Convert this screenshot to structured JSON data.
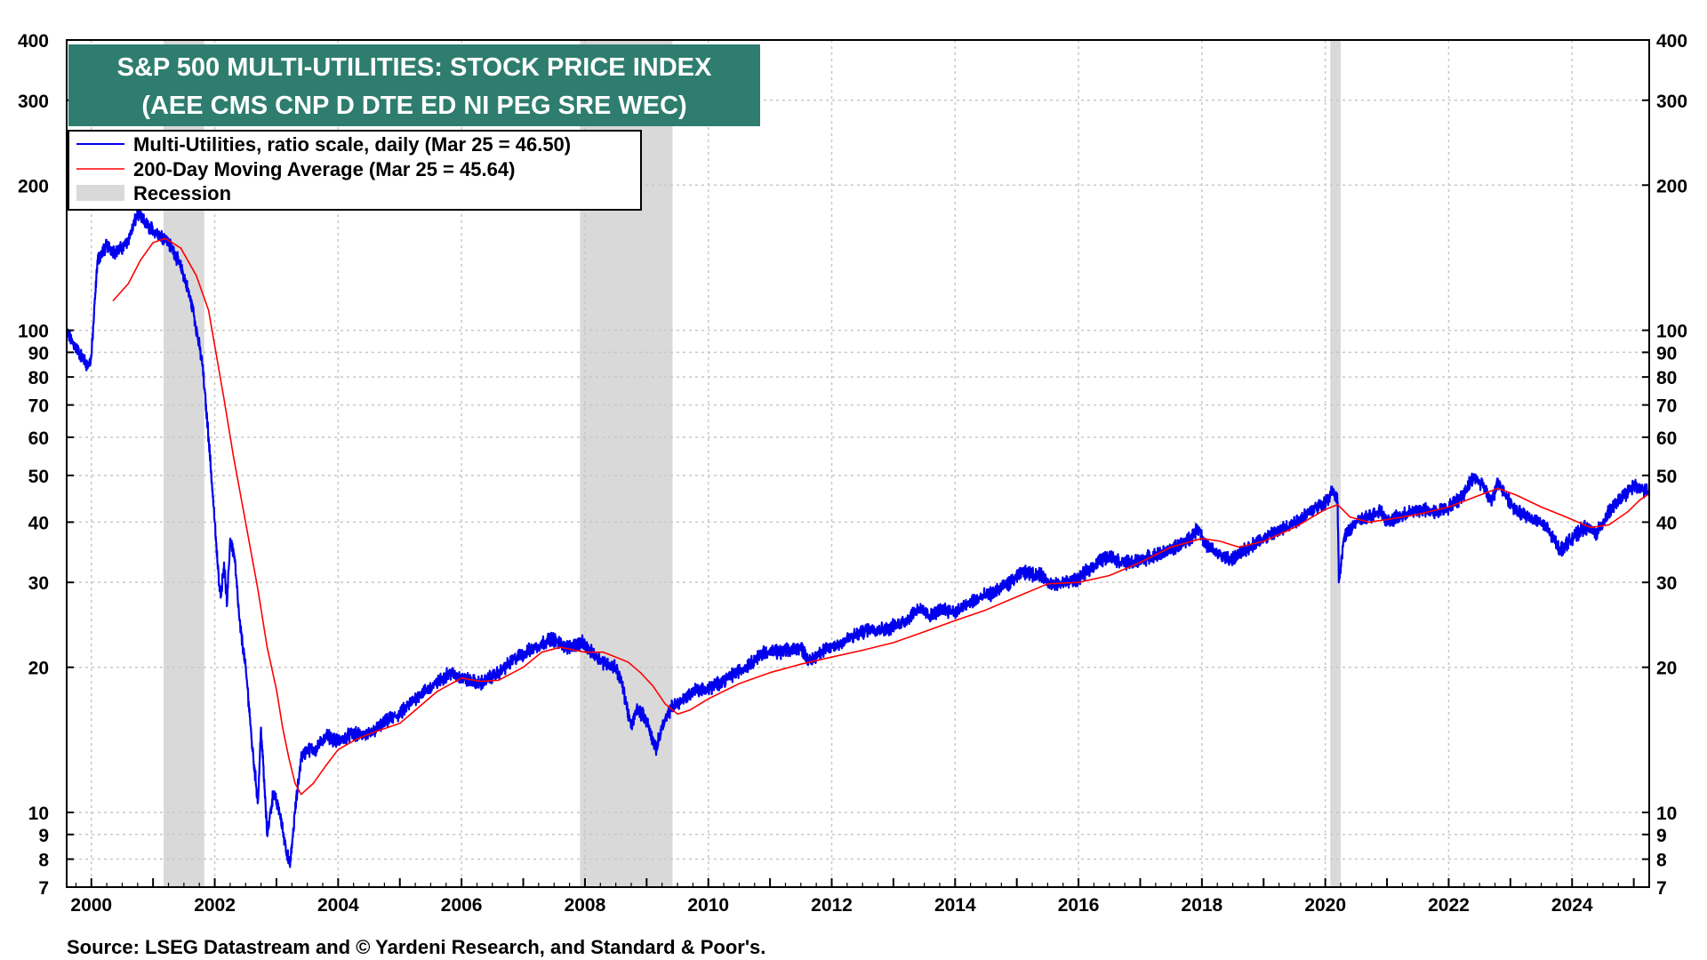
{
  "chart_data": {
    "type": "line",
    "title": "S&P 500 MULTI-UTILITIES: STOCK PRICE INDEX",
    "subtitle": "(AEE CMS CNP D DTE ED NI PEG SRE WEC)",
    "y_scale": "log",
    "ylim": [
      7,
      400
    ],
    "xlim": [
      1999.6,
      2025.25
    ],
    "grid": true,
    "legend_position": "top-left",
    "y_ticks": [
      7,
      8,
      9,
      10,
      20,
      30,
      40,
      50,
      60,
      70,
      80,
      90,
      100,
      200,
      300,
      400
    ],
    "y_tick_labels": [
      "7",
      "8",
      "9",
      "10",
      "20",
      "30",
      "40",
      "50",
      "60",
      "70",
      "80",
      "90",
      "100",
      "200",
      "300",
      "400"
    ],
    "x_ticks": [
      2000,
      2002,
      2004,
      2006,
      2008,
      2010,
      2012,
      2014,
      2016,
      2018,
      2020,
      2022,
      2024
    ],
    "x_tick_labels": [
      "2000",
      "2002",
      "2004",
      "2006",
      "2008",
      "2010",
      "2012",
      "2014",
      "2016",
      "2018",
      "2020",
      "2022",
      "2024"
    ],
    "x_minor_ticks_per_year": 4,
    "recessions": [
      {
        "start": 2001.17,
        "end": 2001.83
      },
      {
        "start": 2007.92,
        "end": 2009.42
      },
      {
        "start": 2020.08,
        "end": 2020.25
      }
    ],
    "series": [
      {
        "name": "Multi-Utilities, ratio scale, daily (Mar 25 = 46.50)",
        "color": "#0000ee",
        "style": "daily",
        "x": [
          1999.6,
          1999.75,
          1999.95,
          2000.0,
          2000.1,
          2000.25,
          2000.4,
          2000.55,
          2000.65,
          2000.75,
          2000.9,
          2001.05,
          2001.2,
          2001.35,
          2001.5,
          2001.65,
          2001.8,
          2001.9,
          2002.0,
          2002.05,
          2002.1,
          2002.15,
          2002.2,
          2002.25,
          2002.32,
          2002.4,
          2002.5,
          2002.55,
          2002.6,
          2002.7,
          2002.75,
          2002.85,
          2002.95,
          2003.05,
          2003.15,
          2003.22,
          2003.3,
          2003.4,
          2003.5,
          2003.65,
          2003.8,
          2004.0,
          2004.2,
          2004.5,
          2004.8,
          2005.0,
          2005.3,
          2005.6,
          2005.8,
          2006.0,
          2006.3,
          2006.6,
          2006.9,
          2007.2,
          2007.45,
          2007.7,
          2007.95,
          2008.1,
          2008.3,
          2008.5,
          2008.6,
          2008.75,
          2008.85,
          2009.0,
          2009.15,
          2009.25,
          2009.4,
          2009.55,
          2009.8,
          2010.0,
          2010.3,
          2010.6,
          2010.9,
          2011.2,
          2011.5,
          2011.65,
          2011.8,
          2012.0,
          2012.3,
          2012.6,
          2012.9,
          2013.2,
          2013.4,
          2013.6,
          2013.8,
          2014.0,
          2014.3,
          2014.6,
          2014.9,
          2015.1,
          2015.4,
          2015.6,
          2015.8,
          2016.0,
          2016.3,
          2016.5,
          2016.7,
          2016.9,
          2017.2,
          2017.5,
          2017.8,
          2017.95,
          2018.05,
          2018.3,
          2018.5,
          2018.7,
          2018.9,
          2019.2,
          2019.5,
          2019.8,
          2020.0,
          2020.12,
          2020.2,
          2020.22,
          2020.3,
          2020.5,
          2020.7,
          2020.9,
          2021.0,
          2021.2,
          2021.5,
          2021.8,
          2022.0,
          2022.2,
          2022.4,
          2022.55,
          2022.7,
          2022.8,
          2022.9,
          2023.1,
          2023.3,
          2023.5,
          2023.7,
          2023.8,
          2024.0,
          2024.2,
          2024.4,
          2024.6,
          2024.8,
          2025.0,
          2025.15,
          2025.23
        ],
        "values": [
          99,
          92,
          84,
          88,
          140,
          150,
          145,
          150,
          160,
          175,
          165,
          160,
          155,
          145,
          130,
          110,
          85,
          60,
          40,
          32,
          28,
          33,
          27,
          37,
          34,
          25,
          20,
          17,
          14,
          10.5,
          15,
          9,
          11,
          10,
          8.5,
          7.7,
          10,
          13,
          13.5,
          13.5,
          14.5,
          14,
          14.5,
          14.5,
          15.5,
          16,
          17.5,
          18.5,
          19.5,
          19,
          18.5,
          19.5,
          21,
          22,
          23,
          22,
          22.5,
          21.5,
          20.5,
          20,
          18.5,
          15,
          16.5,
          15.5,
          13.5,
          15,
          16.5,
          17,
          18,
          18,
          19,
          20,
          21.5,
          21.5,
          22,
          20.5,
          21.5,
          22,
          23,
          24,
          24,
          25,
          26.5,
          25.5,
          26.5,
          26,
          27.5,
          28.5,
          30,
          31.5,
          31,
          29.5,
          30,
          30.5,
          33,
          34,
          33,
          33,
          34,
          35,
          37,
          39,
          36,
          34,
          33.5,
          35,
          36.5,
          38,
          40,
          42.5,
          44,
          46.5,
          44,
          30,
          37,
          40,
          41,
          42.5,
          40,
          41,
          42.5,
          42,
          43,
          45,
          49.5,
          48,
          44,
          48.5,
          46,
          42,
          41,
          40,
          37,
          35,
          37,
          39,
          38,
          42,
          45,
          47.5,
          46.5,
          46.5
        ]
      },
      {
        "name": "200-Day Moving Average (Mar 25 = 45.64)",
        "color": "#ff0000",
        "style": "smooth",
        "x": [
          2000.35,
          2000.6,
          2000.8,
          2001.0,
          2001.2,
          2001.45,
          2001.7,
          2001.9,
          2002.0,
          2002.15,
          2002.3,
          2002.5,
          2002.7,
          2002.85,
          2003.0,
          2003.1,
          2003.2,
          2003.3,
          2003.4,
          2003.6,
          2003.8,
          2004.0,
          2004.3,
          2004.6,
          2005.0,
          2005.3,
          2005.6,
          2006.0,
          2006.3,
          2006.6,
          2007.0,
          2007.3,
          2007.6,
          2008.0,
          2008.3,
          2008.5,
          2008.7,
          2008.9,
          2009.1,
          2009.3,
          2009.5,
          2009.7,
          2010.0,
          2010.5,
          2011.0,
          2011.5,
          2012.0,
          2012.5,
          2013.0,
          2013.5,
          2014.0,
          2014.5,
          2015.0,
          2015.5,
          2016.0,
          2016.5,
          2017.0,
          2017.5,
          2018.0,
          2018.3,
          2018.6,
          2019.0,
          2019.5,
          2020.0,
          2020.2,
          2020.4,
          2020.7,
          2021.0,
          2021.5,
          2022.0,
          2022.5,
          2022.8,
          2023.1,
          2023.5,
          2023.8,
          2024.0,
          2024.3,
          2024.6,
          2024.9,
          2025.1,
          2025.23
        ],
        "values": [
          115,
          125,
          140,
          152,
          155,
          148,
          130,
          110,
          93,
          72,
          55,
          40,
          29,
          22,
          18,
          15,
          13,
          11.5,
          10.9,
          11.5,
          12.5,
          13.5,
          14.2,
          14.7,
          15.3,
          16.5,
          17.8,
          19,
          18.7,
          18.8,
          20,
          21.5,
          22,
          21.5,
          21.5,
          21,
          20.5,
          19.5,
          18.3,
          16.8,
          16,
          16.3,
          17.2,
          18.5,
          19.5,
          20.3,
          21,
          21.7,
          22.5,
          23.7,
          25,
          26.3,
          28,
          29.8,
          30,
          31,
          33,
          35.5,
          37,
          36.5,
          35.5,
          36.5,
          39,
          42.5,
          43.5,
          41,
          40,
          40.5,
          41.5,
          43,
          45.5,
          47,
          45.5,
          43,
          41.5,
          40.5,
          39,
          39.5,
          42,
          44.5,
          45.6
        ]
      }
    ],
    "legend": [
      {
        "label": "Multi-Utilities, ratio scale, daily (Mar 25 = 46.50)",
        "kind": "line",
        "color": "#0000ee"
      },
      {
        "label": "200-Day Moving Average (Mar 25 = 45.64)",
        "kind": "line",
        "color": "#ff0000"
      },
      {
        "label": "Recession",
        "kind": "patch",
        "color": "#d9d9d9"
      }
    ],
    "source": "Source: LSEG Datastream and © Yardeni Research, and Standard & Poor's."
  },
  "colors": {
    "title_box": "#2e7d6f",
    "grid": "#c8c8c8",
    "recession": "#d9d9d9",
    "axis": "#000000"
  }
}
